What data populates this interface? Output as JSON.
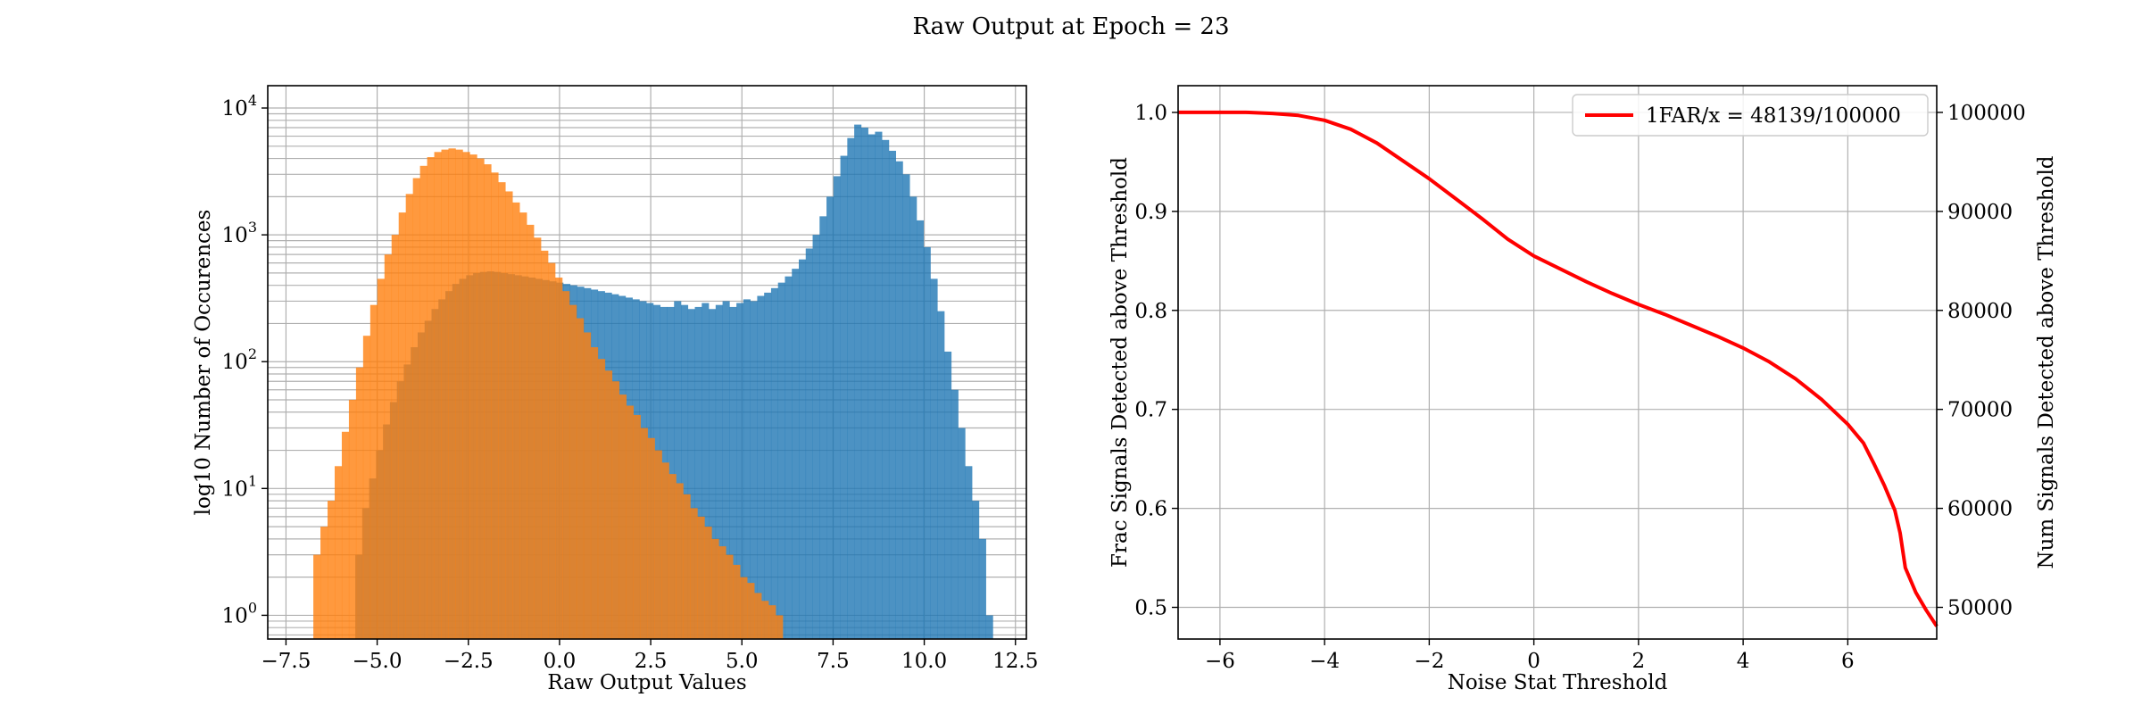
{
  "figure": {
    "title": "Raw Output at Epoch = 23"
  },
  "chart_data": [
    {
      "type": "bar",
      "subtype": "histogram",
      "yscale": "log",
      "xlabel": "Raw Output Values",
      "ylabel": "log10 Number of Occurences",
      "xlim": [
        -8.0,
        12.8
      ],
      "ylim": [
        0.65,
        15000
      ],
      "grid": true,
      "x_ticks": [
        -7.5,
        -5.0,
        -2.5,
        0.0,
        2.5,
        5.0,
        7.5,
        10.0,
        12.5
      ],
      "x_tick_labels": [
        "−7.5",
        "−5.0",
        "−2.5",
        "0.0",
        "2.5",
        "5.0",
        "7.5",
        "10.0",
        "12.5"
      ],
      "y_ticks": [
        1,
        10,
        100,
        1000,
        10000
      ],
      "y_tick_labels": [
        {
          "base": "10",
          "exp": "0"
        },
        {
          "base": "10",
          "exp": "1"
        },
        {
          "base": "10",
          "exp": "2"
        },
        {
          "base": "10",
          "exp": "3"
        },
        {
          "base": "10",
          "exp": "4"
        }
      ],
      "series": [
        {
          "color": "#1f77b4",
          "alpha": 0.8,
          "bins": {
            "start": -5.6,
            "width": 0.19
          },
          "values": [
            3,
            7,
            12,
            20,
            32,
            48,
            70,
            95,
            130,
            170,
            210,
            260,
            310,
            360,
            410,
            450,
            480,
            500,
            510,
            515,
            510,
            500,
            490,
            480,
            470,
            460,
            450,
            440,
            430,
            420,
            410,
            400,
            390,
            380,
            370,
            360,
            350,
            340,
            330,
            320,
            310,
            300,
            290,
            280,
            270,
            270,
            300,
            280,
            260,
            270,
            290,
            260,
            280,
            300,
            270,
            290,
            310,
            300,
            330,
            350,
            380,
            420,
            470,
            540,
            640,
            780,
            1000,
            1400,
            2000,
            2900,
            4200,
            5800,
            7400,
            7000,
            6200,
            6500,
            5600,
            4600,
            3800,
            3000,
            2000,
            1300,
            800,
            450,
            250,
            120,
            60,
            30,
            15,
            8,
            4,
            1
          ]
        },
        {
          "color": "#ff7f0e",
          "alpha": 0.8,
          "bins": {
            "start": -6.75,
            "width": 0.195
          },
          "values": [
            3,
            5,
            8,
            15,
            28,
            50,
            90,
            160,
            280,
            450,
            700,
            1000,
            1500,
            2100,
            2800,
            3500,
            4100,
            4500,
            4700,
            4800,
            4700,
            4500,
            4300,
            4000,
            3600,
            3100,
            2600,
            2200,
            1800,
            1500,
            1200,
            950,
            750,
            600,
            460,
            360,
            280,
            220,
            170,
            130,
            105,
            85,
            70,
            55,
            45,
            38,
            30,
            25,
            20,
            16,
            13,
            11,
            9,
            7,
            6,
            5,
            4,
            3.5,
            3,
            2.5,
            2,
            1.8,
            1.5,
            1.3,
            1.2,
            1
          ]
        }
      ]
    },
    {
      "type": "line",
      "xlabel": "Noise Stat Threshold",
      "ylabel": "Frac Signals Detected above Threshold",
      "ylabel_right": "Num Signals Detected above Threshold",
      "xlim": [
        -6.8,
        7.7
      ],
      "ylim": [
        0.468,
        1.027
      ],
      "ylim_right": [
        46800,
        102700
      ],
      "grid": true,
      "legend_position": "top-right",
      "x_ticks": [
        -6,
        -4,
        -2,
        0,
        2,
        4,
        6
      ],
      "x_tick_labels": [
        "−6",
        "−4",
        "−2",
        "0",
        "2",
        "4",
        "6"
      ],
      "y_ticks": [
        0.5,
        0.6,
        0.7,
        0.8,
        0.9,
        1.0
      ],
      "y_tick_labels": [
        "0.5",
        "0.6",
        "0.7",
        "0.8",
        "0.9",
        "1.0"
      ],
      "y_right_ticks": [
        50000,
        60000,
        70000,
        80000,
        90000,
        100000
      ],
      "y_right_tick_labels": [
        "50000",
        "60000",
        "70000",
        "80000",
        "90000",
        "100000"
      ],
      "series": [
        {
          "name": "1FAR/x = 48139/100000",
          "color": "#ff0000",
          "x": [
            -6.8,
            -6.0,
            -5.5,
            -5.0,
            -4.5,
            -4.0,
            -3.5,
            -3.0,
            -2.5,
            -2.0,
            -1.5,
            -1.0,
            -0.5,
            0.0,
            0.5,
            1.0,
            1.5,
            2.0,
            2.5,
            3.0,
            3.5,
            4.0,
            4.5,
            5.0,
            5.5,
            6.0,
            6.3,
            6.5,
            6.7,
            6.9,
            7.0,
            7.1,
            7.3,
            7.5,
            7.7
          ],
          "y": [
            1.0,
            1.0,
            1.0,
            0.999,
            0.997,
            0.992,
            0.983,
            0.969,
            0.951,
            0.933,
            0.913,
            0.893,
            0.872,
            0.855,
            0.842,
            0.829,
            0.817,
            0.806,
            0.796,
            0.785,
            0.774,
            0.762,
            0.748,
            0.731,
            0.71,
            0.685,
            0.666,
            0.645,
            0.623,
            0.598,
            0.575,
            0.54,
            0.515,
            0.497,
            0.481
          ]
        }
      ]
    }
  ]
}
